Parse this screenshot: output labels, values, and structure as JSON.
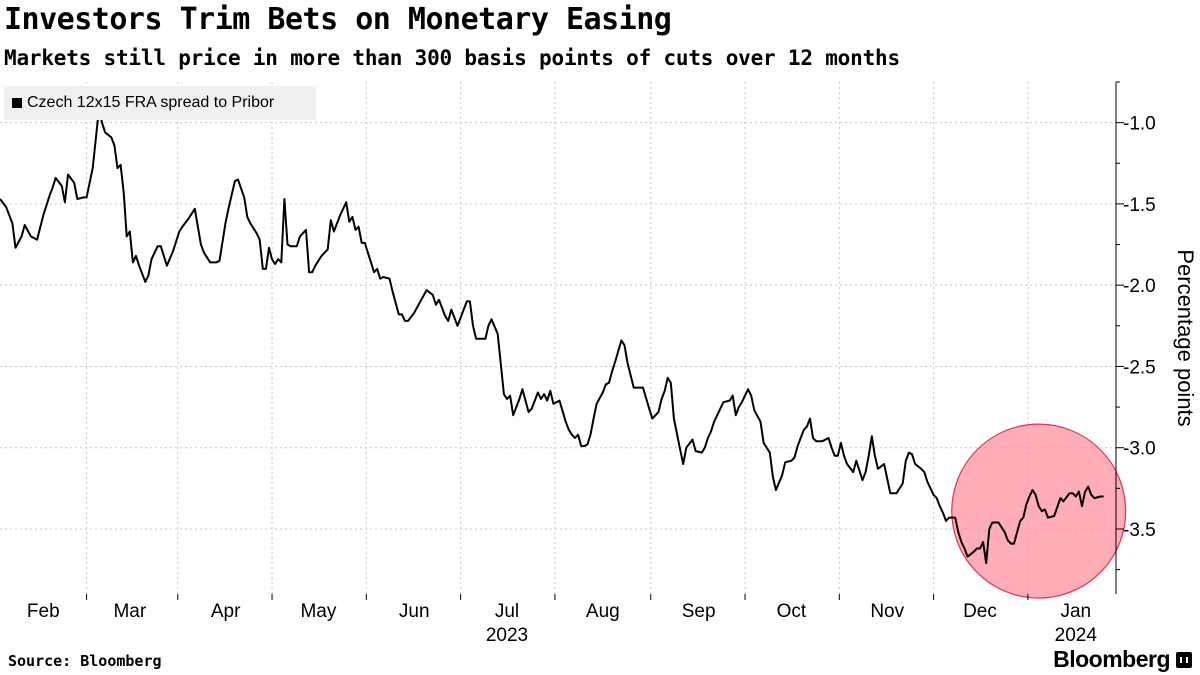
{
  "title": "Investors Trim Bets on Monetary Easing",
  "subtitle": "Markets still price in more than 300 basis points of cuts over 12 months",
  "source": "Source: Bloomberg",
  "brand": "Bloomberg",
  "chart_data": {
    "type": "line",
    "legend": "Czech 12x15 FRA spread to Pribor",
    "ylabel": "Percentage points",
    "ylim": [
      -3.9,
      -0.75
    ],
    "yticks": [
      -1.0,
      -1.5,
      -2.0,
      -2.5,
      -3.0,
      -3.5
    ],
    "ytick_labels": [
      "-1.0",
      "-1.5",
      "-2.0",
      "-2.5",
      "-3.0",
      "-3.5"
    ],
    "xlim": [
      0,
      361
    ],
    "month_ticks": [
      {
        "label": "Feb",
        "pos": 14
      },
      {
        "label": "Mar",
        "pos": 42
      },
      {
        "label": "Apr",
        "pos": 73
      },
      {
        "label": "May",
        "pos": 103
      },
      {
        "label": "Jun",
        "pos": 134
      },
      {
        "label": "Jul",
        "pos": 164
      },
      {
        "label": "Aug",
        "pos": 195
      },
      {
        "label": "Sep",
        "pos": 226
      },
      {
        "label": "Oct",
        "pos": 256
      },
      {
        "label": "Nov",
        "pos": 287
      },
      {
        "label": "Dec",
        "pos": 317
      },
      {
        "label": "Jan",
        "pos": 348
      }
    ],
    "year_labels": [
      {
        "label": "2023",
        "pos": 164
      },
      {
        "label": "2024",
        "pos": 348
      }
    ],
    "series": [
      {
        "name": "Czech 12x15 FRA spread to Pribor",
        "color": "#000000",
        "points": [
          [
            0,
            -1.47
          ],
          [
            2,
            -1.52
          ],
          [
            4,
            -1.62
          ],
          [
            5,
            -1.77
          ],
          [
            7,
            -1.7
          ],
          [
            8,
            -1.63
          ],
          [
            10,
            -1.7
          ],
          [
            12,
            -1.72
          ],
          [
            14,
            -1.57
          ],
          [
            16,
            -1.45
          ],
          [
            17,
            -1.4
          ],
          [
            18,
            -1.34
          ],
          [
            20,
            -1.39
          ],
          [
            21,
            -1.49
          ],
          [
            22,
            -1.32
          ],
          [
            24,
            -1.37
          ],
          [
            25,
            -1.47
          ],
          [
            27,
            -1.46
          ],
          [
            28,
            -1.46
          ],
          [
            30,
            -1.28
          ],
          [
            32,
            -0.92
          ],
          [
            33,
            -1.0
          ],
          [
            34,
            -1.06
          ],
          [
            36,
            -1.09
          ],
          [
            37,
            -1.14
          ],
          [
            38,
            -1.28
          ],
          [
            39,
            -1.26
          ],
          [
            40,
            -1.43
          ],
          [
            41,
            -1.7
          ],
          [
            42,
            -1.67
          ],
          [
            43,
            -1.86
          ],
          [
            44,
            -1.82
          ],
          [
            45,
            -1.88
          ],
          [
            47,
            -1.98
          ],
          [
            48,
            -1.94
          ],
          [
            49,
            -1.84
          ],
          [
            51,
            -1.76
          ],
          [
            52,
            -1.76
          ],
          [
            54,
            -1.88
          ],
          [
            56,
            -1.79
          ],
          [
            58,
            -1.67
          ],
          [
            59,
            -1.64
          ],
          [
            61,
            -1.59
          ],
          [
            62,
            -1.56
          ],
          [
            63,
            -1.53
          ],
          [
            65,
            -1.75
          ],
          [
            66,
            -1.8
          ],
          [
            68,
            -1.86
          ],
          [
            69,
            -1.86
          ],
          [
            70,
            -1.86
          ],
          [
            71,
            -1.85
          ],
          [
            73,
            -1.61
          ],
          [
            74,
            -1.52
          ],
          [
            76,
            -1.36
          ],
          [
            77,
            -1.35
          ],
          [
            79,
            -1.46
          ],
          [
            80,
            -1.58
          ],
          [
            81,
            -1.62
          ],
          [
            83,
            -1.68
          ],
          [
            84,
            -1.72
          ],
          [
            85,
            -1.9
          ],
          [
            86,
            -1.9
          ],
          [
            87,
            -1.77
          ],
          [
            88,
            -1.84
          ],
          [
            89,
            -1.87
          ],
          [
            90,
            -1.84
          ],
          [
            91,
            -1.86
          ],
          [
            92,
            -1.47
          ],
          [
            93,
            -1.75
          ],
          [
            94,
            -1.76
          ],
          [
            95,
            -1.76
          ],
          [
            96,
            -1.76
          ],
          [
            97,
            -1.7
          ],
          [
            99,
            -1.66
          ],
          [
            100,
            -1.92
          ],
          [
            101,
            -1.92
          ],
          [
            102,
            -1.88
          ],
          [
            104,
            -1.82
          ],
          [
            106,
            -1.78
          ],
          [
            107,
            -1.6
          ],
          [
            108,
            -1.67
          ],
          [
            110,
            -1.57
          ],
          [
            112,
            -1.49
          ],
          [
            113,
            -1.61
          ],
          [
            114,
            -1.58
          ],
          [
            115,
            -1.66
          ],
          [
            116,
            -1.64
          ],
          [
            117,
            -1.74
          ],
          [
            118,
            -1.74
          ],
          [
            119,
            -1.8
          ],
          [
            121,
            -1.92
          ],
          [
            122,
            -1.9
          ],
          [
            123,
            -1.96
          ],
          [
            124,
            -1.95
          ],
          [
            126,
            -1.96
          ],
          [
            127,
            -2.04
          ],
          [
            129,
            -2.18
          ],
          [
            130,
            -2.18
          ],
          [
            131,
            -2.22
          ],
          [
            132,
            -2.22
          ],
          [
            134,
            -2.17
          ],
          [
            136,
            -2.1
          ],
          [
            138,
            -2.03
          ],
          [
            140,
            -2.06
          ],
          [
            141,
            -2.12
          ],
          [
            142,
            -2.09
          ],
          [
            144,
            -2.19
          ],
          [
            145,
            -2.22
          ],
          [
            146,
            -2.15
          ],
          [
            147,
            -2.2
          ],
          [
            148,
            -2.25
          ],
          [
            149,
            -2.2
          ],
          [
            151,
            -2.1
          ],
          [
            152,
            -2.1
          ],
          [
            153,
            -2.25
          ],
          [
            154,
            -2.33
          ],
          [
            156,
            -2.33
          ],
          [
            157,
            -2.33
          ],
          [
            158,
            -2.25
          ],
          [
            159,
            -2.21
          ],
          [
            161,
            -2.3
          ],
          [
            163,
            -2.67
          ],
          [
            164,
            -2.7
          ],
          [
            165,
            -2.68
          ],
          [
            166,
            -2.8
          ],
          [
            168,
            -2.7
          ],
          [
            169,
            -2.64
          ],
          [
            171,
            -2.78
          ],
          [
            172,
            -2.76
          ],
          [
            174,
            -2.66
          ],
          [
            175,
            -2.7
          ],
          [
            176,
            -2.67
          ],
          [
            177,
            -2.71
          ],
          [
            178,
            -2.65
          ],
          [
            179,
            -2.73
          ],
          [
            180,
            -2.72
          ],
          [
            181,
            -2.71
          ],
          [
            183,
            -2.84
          ],
          [
            184,
            -2.89
          ],
          [
            185,
            -2.92
          ],
          [
            186,
            -2.94
          ],
          [
            187,
            -2.92
          ],
          [
            188,
            -2.99
          ],
          [
            189,
            -2.99
          ],
          [
            190,
            -2.98
          ],
          [
            191,
            -2.92
          ],
          [
            192,
            -2.82
          ],
          [
            193,
            -2.73
          ],
          [
            195,
            -2.66
          ],
          [
            196,
            -2.61
          ],
          [
            197,
            -2.6
          ],
          [
            198,
            -2.53
          ],
          [
            199,
            -2.47
          ],
          [
            201,
            -2.34
          ],
          [
            202,
            -2.37
          ],
          [
            203,
            -2.48
          ],
          [
            205,
            -2.63
          ],
          [
            207,
            -2.63
          ],
          [
            208,
            -2.63
          ],
          [
            210,
            -2.76
          ],
          [
            211,
            -2.82
          ],
          [
            213,
            -2.78
          ],
          [
            214,
            -2.7
          ],
          [
            215,
            -2.65
          ],
          [
            216,
            -2.57
          ],
          [
            217,
            -2.6
          ],
          [
            218,
            -2.82
          ],
          [
            220,
            -3.01
          ],
          [
            221,
            -3.1
          ],
          [
            222,
            -3.0
          ],
          [
            224,
            -2.95
          ],
          [
            225,
            -3.02
          ],
          [
            227,
            -3.03
          ],
          [
            228,
            -3.0
          ],
          [
            229,
            -2.94
          ],
          [
            230,
            -2.9
          ],
          [
            231,
            -2.84
          ],
          [
            232,
            -2.8
          ],
          [
            233,
            -2.76
          ],
          [
            234,
            -2.72
          ],
          [
            236,
            -2.71
          ],
          [
            237,
            -2.68
          ],
          [
            238,
            -2.8
          ],
          [
            239,
            -2.75
          ],
          [
            240,
            -2.72
          ],
          [
            242,
            -2.64
          ],
          [
            243,
            -2.68
          ],
          [
            244,
            -2.77
          ],
          [
            246,
            -2.84
          ],
          [
            247,
            -2.97
          ],
          [
            248,
            -3.0
          ],
          [
            249,
            -3.03
          ],
          [
            250,
            -3.18
          ],
          [
            251,
            -3.26
          ],
          [
            253,
            -3.17
          ],
          [
            254,
            -3.09
          ],
          [
            256,
            -3.08
          ],
          [
            257,
            -3.06
          ],
          [
            258,
            -2.99
          ],
          [
            260,
            -2.89
          ],
          [
            261,
            -2.87
          ],
          [
            262,
            -2.82
          ],
          [
            263,
            -2.94
          ],
          [
            264,
            -2.96
          ],
          [
            266,
            -2.96
          ],
          [
            267,
            -2.95
          ],
          [
            268,
            -2.94
          ],
          [
            269,
            -3.0
          ],
          [
            270,
            -3.05
          ],
          [
            271,
            -3.05
          ],
          [
            272,
            -2.97
          ],
          [
            273,
            -3.05
          ],
          [
            274,
            -3.1
          ],
          [
            276,
            -3.15
          ],
          [
            277,
            -3.08
          ],
          [
            279,
            -3.2
          ],
          [
            280,
            -3.15
          ],
          [
            281,
            -3.05
          ],
          [
            282,
            -2.93
          ],
          [
            283,
            -3.05
          ],
          [
            284,
            -3.13
          ],
          [
            286,
            -3.1
          ],
          [
            288,
            -3.28
          ],
          [
            289,
            -3.28
          ],
          [
            290,
            -3.28
          ],
          [
            292,
            -3.22
          ],
          [
            293,
            -3.08
          ],
          [
            294,
            -3.03
          ],
          [
            295,
            -3.04
          ],
          [
            296,
            -3.1
          ],
          [
            298,
            -3.13
          ],
          [
            299,
            -3.15
          ],
          [
            300,
            -3.21
          ],
          [
            302,
            -3.29
          ],
          [
            303,
            -3.31
          ],
          [
            304,
            -3.36
          ],
          [
            305,
            -3.4
          ],
          [
            306,
            -3.45
          ],
          [
            307,
            -3.43
          ],
          [
            309,
            -3.43
          ],
          [
            310,
            -3.52
          ],
          [
            311,
            -3.58
          ],
          [
            312,
            -3.62
          ],
          [
            313,
            -3.67
          ],
          [
            315,
            -3.64
          ],
          [
            316,
            -3.62
          ],
          [
            317,
            -3.62
          ],
          [
            318,
            -3.58
          ],
          [
            319,
            -3.71
          ],
          [
            320,
            -3.5
          ],
          [
            321,
            -3.46
          ],
          [
            323,
            -3.46
          ],
          [
            325,
            -3.52
          ],
          [
            326,
            -3.57
          ],
          [
            327,
            -3.59
          ],
          [
            328,
            -3.59
          ],
          [
            329,
            -3.52
          ],
          [
            330,
            -3.45
          ],
          [
            331,
            -3.43
          ],
          [
            332,
            -3.35
          ],
          [
            333,
            -3.3
          ],
          [
            334,
            -3.26
          ],
          [
            335,
            -3.29
          ],
          [
            336,
            -3.36
          ],
          [
            337,
            -3.39
          ],
          [
            338,
            -3.38
          ],
          [
            339,
            -3.43
          ],
          [
            341,
            -3.42
          ],
          [
            343,
            -3.31
          ],
          [
            344,
            -3.33
          ],
          [
            346,
            -3.28
          ],
          [
            347,
            -3.28
          ],
          [
            348,
            -3.3
          ],
          [
            349,
            -3.27
          ],
          [
            350,
            -3.36
          ],
          [
            351,
            -3.27
          ],
          [
            352,
            -3.24
          ],
          [
            353,
            -3.29
          ],
          [
            354,
            -3.31
          ],
          [
            356,
            -3.3
          ],
          [
            357,
            -3.3
          ]
        ]
      }
    ],
    "highlight": {
      "type": "circle",
      "color": "#ff8a9a",
      "stroke": "#e0344f",
      "center_x": 336,
      "center_y": -3.39,
      "radius_y": 0.535
    }
  }
}
